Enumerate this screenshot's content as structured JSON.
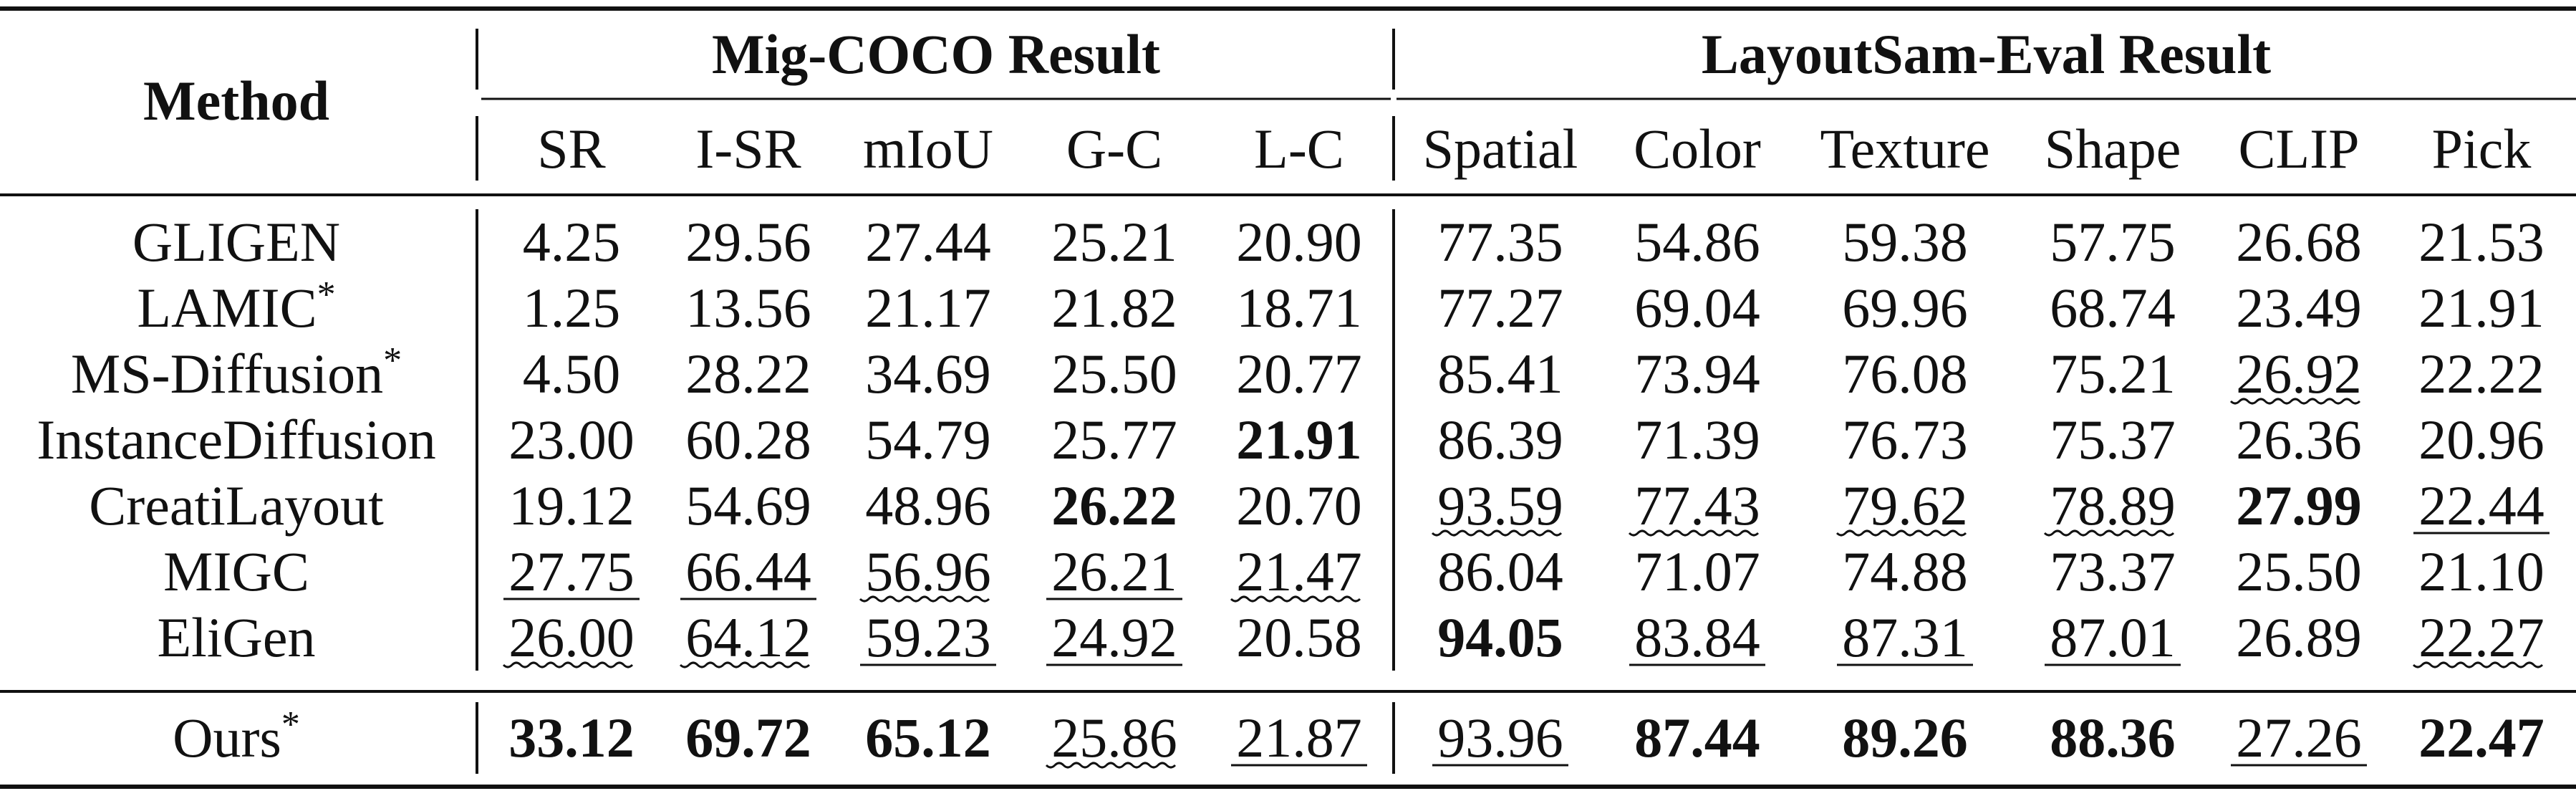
{
  "table": {
    "method_header": "Method",
    "groups": [
      {
        "label": "Mig-COCO Result",
        "columns": [
          "SR",
          "I-SR",
          "mIoU",
          "G-C",
          "L-C"
        ]
      },
      {
        "label": "LayoutSam-Eval Result",
        "columns": [
          "Spatial",
          "Color",
          "Texture",
          "Shape",
          "CLIP",
          "Pick"
        ]
      }
    ],
    "rows": [
      {
        "method": "GLIGEN",
        "star": false,
        "values": [
          "4.25",
          "29.56",
          "27.44",
          "25.21",
          "20.90",
          "77.35",
          "54.86",
          "59.38",
          "57.75",
          "26.68",
          "21.53"
        ],
        "styles": [
          "",
          "",
          "",
          "",
          "",
          "",
          "",
          "",
          "",
          "",
          ""
        ]
      },
      {
        "method": "LAMIC",
        "star": true,
        "values": [
          "1.25",
          "13.56",
          "21.17",
          "21.82",
          "18.71",
          "77.27",
          "69.04",
          "69.96",
          "68.74",
          "23.49",
          "21.91"
        ],
        "styles": [
          "",
          "",
          "",
          "",
          "",
          "",
          "",
          "",
          "",
          "",
          ""
        ]
      },
      {
        "method": "MS-Diffusion",
        "star": true,
        "values": [
          "4.50",
          "28.22",
          "34.69",
          "25.50",
          "20.77",
          "85.41",
          "73.94",
          "76.08",
          "75.21",
          "26.92",
          "22.22"
        ],
        "styles": [
          "",
          "",
          "",
          "",
          "",
          "",
          "",
          "",
          "",
          "wavy",
          ""
        ]
      },
      {
        "method": "InstanceDiffusion",
        "star": false,
        "values": [
          "23.00",
          "60.28",
          "54.79",
          "25.77",
          "21.91",
          "86.39",
          "71.39",
          "76.73",
          "75.37",
          "26.36",
          "20.96"
        ],
        "styles": [
          "",
          "",
          "",
          "",
          "bold",
          "",
          "",
          "",
          "",
          "",
          ""
        ]
      },
      {
        "method": "CreatiLayout",
        "star": false,
        "values": [
          "19.12",
          "54.69",
          "48.96",
          "26.22",
          "20.70",
          "93.59",
          "77.43",
          "79.62",
          "78.89",
          "27.99",
          "22.44"
        ],
        "styles": [
          "",
          "",
          "",
          "bold",
          "",
          "wavy",
          "wavy",
          "wavy",
          "wavy",
          "bold",
          "underline"
        ]
      },
      {
        "method": "MIGC",
        "star": false,
        "values": [
          "27.75",
          "66.44",
          "56.96",
          "26.21",
          "21.47",
          "86.04",
          "71.07",
          "74.88",
          "73.37",
          "25.50",
          "21.10"
        ],
        "styles": [
          "underline",
          "underline",
          "wavy",
          "underline",
          "wavy",
          "",
          "",
          "",
          "",
          "",
          ""
        ]
      },
      {
        "method": "EliGen",
        "star": false,
        "values": [
          "26.00",
          "64.12",
          "59.23",
          "24.92",
          "20.58",
          "94.05",
          "83.84",
          "87.31",
          "87.01",
          "26.89",
          "22.27"
        ],
        "styles": [
          "wavy",
          "wavy",
          "underline",
          "underline",
          "",
          "bold",
          "underline",
          "underline",
          "underline",
          "",
          "wavy"
        ]
      },
      {
        "method": "Ours",
        "star": true,
        "values": [
          "33.12",
          "69.72",
          "65.12",
          "25.86",
          "21.87",
          "93.96",
          "87.44",
          "89.26",
          "88.36",
          "27.26",
          "22.47"
        ],
        "styles": [
          "bold",
          "bold",
          "bold",
          "wavy",
          "underline",
          "underline",
          "bold",
          "bold",
          "bold",
          "underline",
          "bold"
        ]
      }
    ],
    "star_symbol": "*"
  }
}
